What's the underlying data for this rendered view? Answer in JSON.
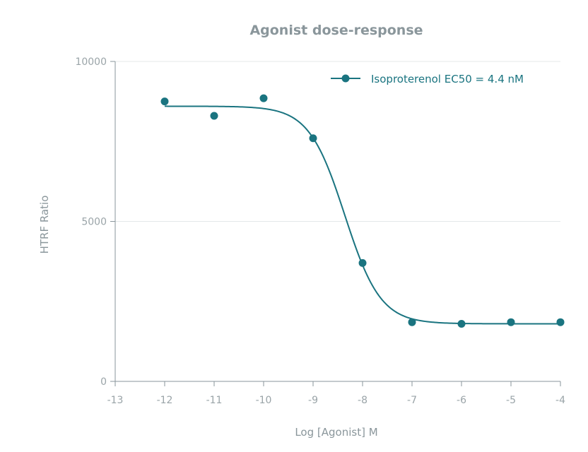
{
  "chart_data": {
    "type": "scatter",
    "title": "Agonist dose-response",
    "xlabel": "Log [Agonist] M",
    "ylabel": "HTRF Ratio",
    "xlim": [
      -13,
      -4
    ],
    "ylim": [
      0,
      10000
    ],
    "xticks": [
      -13,
      -12,
      -11,
      -10,
      -9,
      -8,
      -7,
      -6,
      -5,
      -4
    ],
    "xtick_labels": [
      "-13",
      "-12",
      "-11",
      "-10",
      "-9",
      "-8",
      "-7",
      "-6",
      "-5",
      "-4"
    ],
    "yticks": [
      0,
      5000,
      10000
    ],
    "ytick_labels": [
      "0",
      "5000",
      "10000"
    ],
    "grid": "horizontal",
    "legend_position": "top-right",
    "color": "#1a7480",
    "series": [
      {
        "name": "Isoproterenol EC50 = 4.4 nM",
        "x": [
          -12,
          -11,
          -10,
          -9,
          -8,
          -7,
          -6,
          -5,
          -4
        ],
        "y": [
          8750,
          8300,
          8850,
          7600,
          3700,
          1850,
          1800,
          1850,
          1850
        ],
        "fit": {
          "model": "4PL",
          "top": 8600,
          "bottom": 1800,
          "logEC50": -8.36,
          "hill": 1.2
        }
      }
    ]
  }
}
